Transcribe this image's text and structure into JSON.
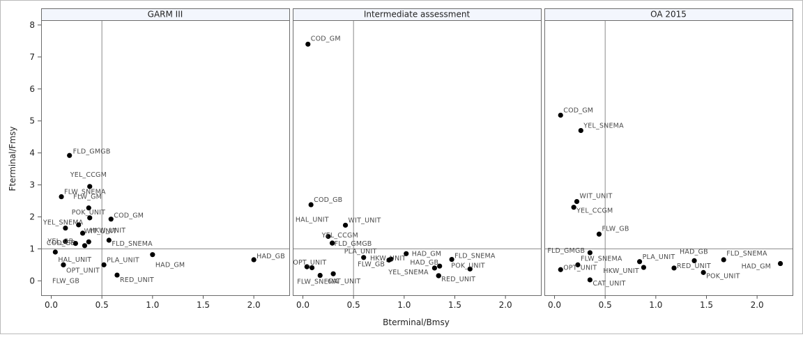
{
  "chart_data": {
    "type": "scatter",
    "xlabel": "Bterminal/Bmsy",
    "ylabel": "Fterminal/Fmsy",
    "xlim": [
      -0.1,
      2.35
    ],
    "ylim": [
      -0.45,
      8.15
    ],
    "xticks": [
      "0.0",
      "0.5",
      "1.0",
      "1.5",
      "2.0"
    ],
    "xtick_values": [
      0,
      0.5,
      1,
      1.5,
      2
    ],
    "yticks": [
      "0",
      "1",
      "2",
      "3",
      "4",
      "5",
      "6",
      "7",
      "8"
    ],
    "ytick_values": [
      0,
      1,
      2,
      3,
      4,
      5,
      6,
      7,
      8
    ],
    "reference_lines": {
      "x": 0.5,
      "y": 1
    },
    "grid": false,
    "panels": [
      {
        "title": "GARM III",
        "points": [
          {
            "label": "FLD_GMGB",
            "x": 0.18,
            "y": 3.92
          },
          {
            "label": "YEL_CCGM",
            "x": 0.38,
            "y": 2.95
          },
          {
            "label": "FLW_SNEMA",
            "x": 0.1,
            "y": 2.63
          },
          {
            "label": "FLW_GM",
            "x": 0.37,
            "y": 2.28
          },
          {
            "label": "POK_UNIT",
            "x": 0.38,
            "y": 1.97
          },
          {
            "label": "COD_GM",
            "x": 0.59,
            "y": 1.93
          },
          {
            "label": "YEL_SNEMA",
            "x": 0.14,
            "y": 1.65
          },
          {
            "label": "HKW_UNIT",
            "x": 0.27,
            "y": 1.75
          },
          {
            "label": "COD_GB",
            "x": 0.14,
            "y": 1.23
          },
          {
            "label": "WIT_UNIT",
            "x": 0.31,
            "y": 1.49
          },
          {
            "label": "YEL_GB",
            "x": 0.24,
            "y": 1.17
          },
          {
            "label": "",
            "x": 0.33,
            "y": 1.1
          },
          {
            "label": "",
            "x": 0.37,
            "y": 1.22
          },
          {
            "label": "FLD_SNEMA",
            "x": 0.57,
            "y": 1.27
          },
          {
            "label": "HAL_UNIT",
            "x": 0.04,
            "y": 0.9
          },
          {
            "label": "HAD_GM",
            "x": 1.0,
            "y": 0.82
          },
          {
            "label": "PLA_UNIT",
            "x": 0.52,
            "y": 0.5
          },
          {
            "label": "OPT_UNIT",
            "x": 0.12,
            "y": 0.5
          },
          {
            "label": "FLW_GB",
            "x": 0.12,
            "y": 0.5
          },
          {
            "label": "RED_UNIT",
            "x": 0.65,
            "y": 0.18
          },
          {
            "label": "HAD_GB",
            "x": 2.0,
            "y": 0.66
          }
        ]
      },
      {
        "title": "Intermediate assessment",
        "points": [
          {
            "label": "COD_GM",
            "x": 0.05,
            "y": 7.4
          },
          {
            "label": "COD_GB",
            "x": 0.08,
            "y": 2.38
          },
          {
            "label": "WIT_UNIT",
            "x": 0.42,
            "y": 1.74
          },
          {
            "label": "HAL_UNIT",
            "x": 0.25,
            "y": 1.39
          },
          {
            "label": "YEL_CCGM",
            "x": 0.29,
            "y": 1.18
          },
          {
            "label": "FLD_GMGB",
            "x": 0.29,
            "y": 1.18
          },
          {
            "label": "HAD_GM",
            "x": 1.02,
            "y": 0.85
          },
          {
            "label": "PLA_UNIT",
            "x": 0.6,
            "y": 0.73
          },
          {
            "label": "HKW_UNIT",
            "x": 0.87,
            "y": 0.68
          },
          {
            "label": "FLW_GB",
            "x": 0.85,
            "y": 0.65
          },
          {
            "label": "FLD_SNEMA",
            "x": 1.47,
            "y": 0.67
          },
          {
            "label": "HAD_GB",
            "x": 1.3,
            "y": 0.4
          },
          {
            "label": "POK_UNIT",
            "x": 1.65,
            "y": 0.37
          },
          {
            "label": "",
            "x": 1.35,
            "y": 0.46
          },
          {
            "label": "OPT_UNIT",
            "x": 0.04,
            "y": 0.44
          },
          {
            "label": "",
            "x": 0.09,
            "y": 0.41
          },
          {
            "label": "YEL_SNEMA",
            "x": 1.34,
            "y": 0.16
          },
          {
            "label": "RED_UNIT",
            "x": 1.34,
            "y": 0.16
          },
          {
            "label": "FLW_SNEMA",
            "x": 0.17,
            "y": 0.17
          },
          {
            "label": "CAT_UNIT",
            "x": 0.3,
            "y": 0.22
          }
        ]
      },
      {
        "title": "OA 2015",
        "points": [
          {
            "label": "COD_GM",
            "x": 0.06,
            "y": 5.18
          },
          {
            "label": "YEL_SNEMA",
            "x": 0.26,
            "y": 4.7
          },
          {
            "label": "WIT_UNIT",
            "x": 0.22,
            "y": 2.48
          },
          {
            "label": "YEL_CCGM",
            "x": 0.19,
            "y": 2.3
          },
          {
            "label": "FLW_GB",
            "x": 0.44,
            "y": 1.46
          },
          {
            "label": "FLD_GMGB",
            "x": 0.35,
            "y": 0.88
          },
          {
            "label": "PLA_UNIT",
            "x": 0.84,
            "y": 0.6
          },
          {
            "label": "HAD_GB",
            "x": 1.38,
            "y": 0.63
          },
          {
            "label": "FLD_SNEMA",
            "x": 1.67,
            "y": 0.66
          },
          {
            "label": "HAD_GM",
            "x": 2.23,
            "y": 0.54
          },
          {
            "label": "FLW_SNEMA",
            "x": 0.23,
            "y": 0.5
          },
          {
            "label": "OPT_UNIT",
            "x": 0.06,
            "y": 0.35
          },
          {
            "label": "HKW_UNIT",
            "x": 0.88,
            "y": 0.42
          },
          {
            "label": "RED_UNIT",
            "x": 1.18,
            "y": 0.4
          },
          {
            "label": "POK_UNIT",
            "x": 1.47,
            "y": 0.26
          },
          {
            "label": "CAT_UNIT",
            "x": 0.35,
            "y": 0.03
          }
        ]
      }
    ]
  }
}
